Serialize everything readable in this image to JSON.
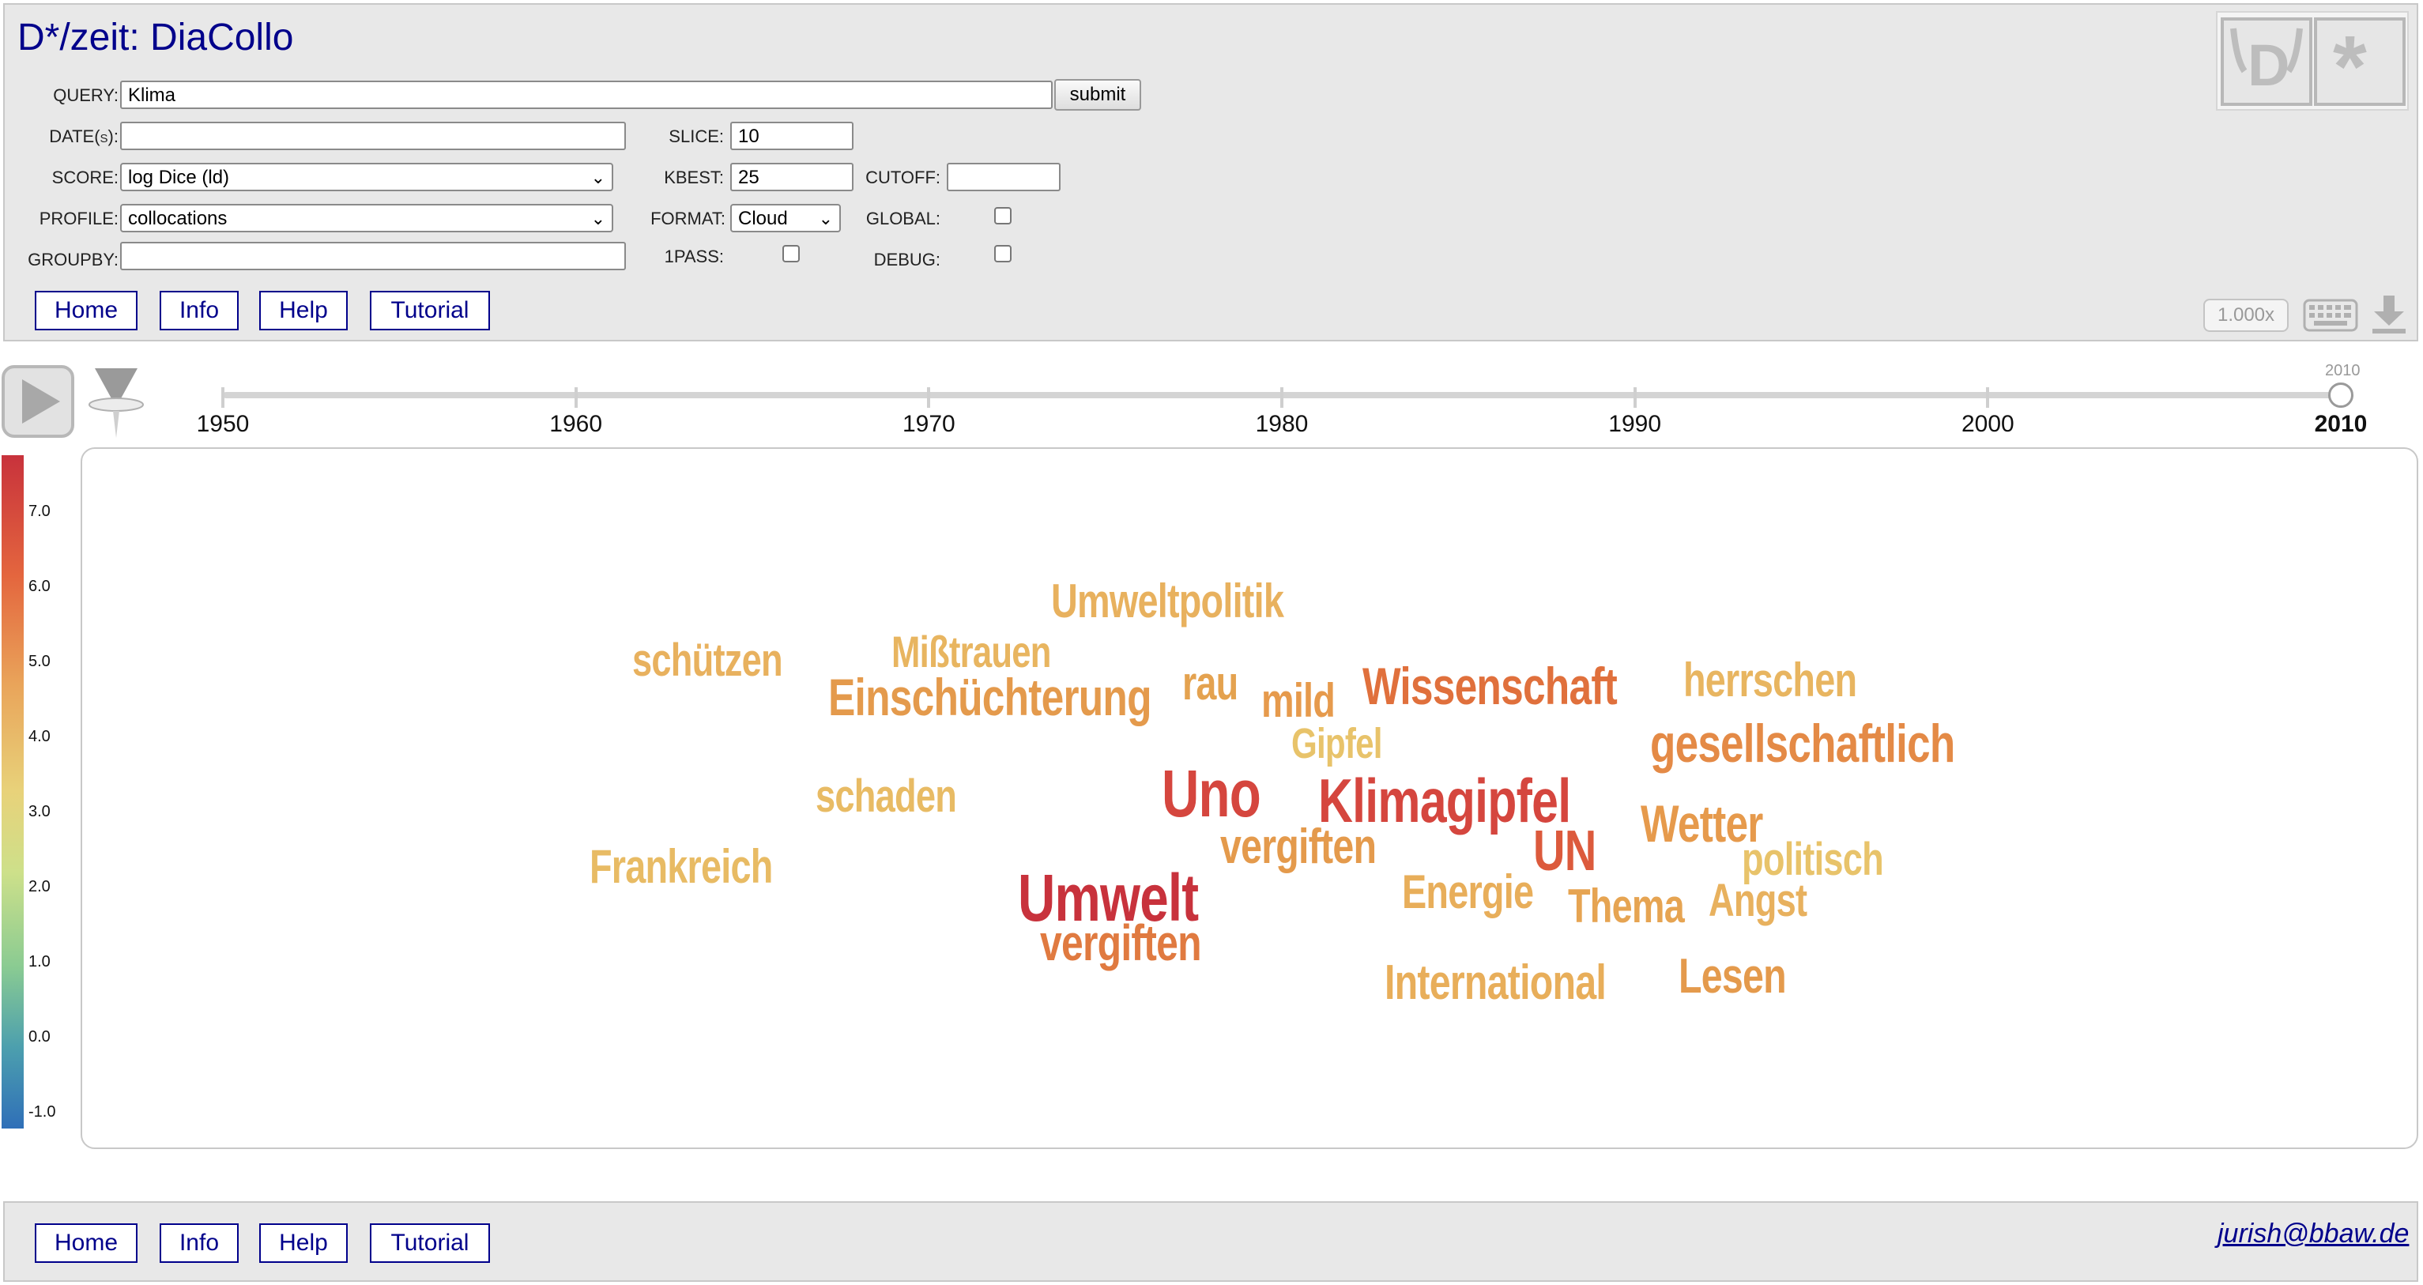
{
  "app": {
    "title": "D*/zeit: DiaCollo"
  },
  "form": {
    "query_label": "QUERY:",
    "query_value": "Klima",
    "submit_label": "submit",
    "dates_label": "DATE(s):",
    "dates_value": "",
    "slice_label": "SLICE:",
    "slice_value": "10",
    "score_label": "SCORE:",
    "score_value": "log Dice (ld)",
    "kbest_label": "KBEST:",
    "kbest_value": "25",
    "cutoff_label": "CUTOFF:",
    "cutoff_value": "",
    "profile_label": "PROFILE:",
    "profile_value": "collocations",
    "format_label": "FORMAT:",
    "format_value": "Cloud",
    "global_label": "GLOBAL:",
    "groupby_label": "GROUPBY:",
    "groupby_value": "",
    "onepass_label": "1PASS:",
    "debug_label": "DEBUG:"
  },
  "nav": {
    "home": "Home",
    "info": "Info",
    "help": "Help",
    "tutorial": "Tutorial"
  },
  "zoom": "1.000x",
  "timeline": {
    "ticks": [
      "1950",
      "1960",
      "1970",
      "1980",
      "1990",
      "2000",
      "2010"
    ],
    "current": "2010"
  },
  "legend": [
    "7.0",
    "6.0",
    "5.0",
    "4.0",
    "3.0",
    "2.0",
    "1.0",
    "0.0",
    "-1.0"
  ],
  "cloud": {
    "words": [
      {
        "text": "Umweltpolitik",
        "color": "#e8b15e"
      },
      {
        "text": "schützen",
        "color": "#e8b15e"
      },
      {
        "text": "Mißtrauen",
        "color": "#e8b560"
      },
      {
        "text": "Einschüchterung",
        "color": "#e49a4c"
      },
      {
        "text": "rau",
        "color": "#e4a24f"
      },
      {
        "text": "mild",
        "color": "#e69a4c"
      },
      {
        "text": "Wissenschaft",
        "color": "#e0703c"
      },
      {
        "text": "herrschen",
        "color": "#e8b560"
      },
      {
        "text": "Gipfel",
        "color": "#e8c36a"
      },
      {
        "text": "gesellschaftlich",
        "color": "#e48a46"
      },
      {
        "text": "schaden",
        "color": "#e8bb64"
      },
      {
        "text": "Uno",
        "color": "#d5463e"
      },
      {
        "text": "Klimagipfel",
        "color": "#d5463e"
      },
      {
        "text": "Wetter",
        "color": "#e69a4c"
      },
      {
        "text": "vergiften",
        "color": "#e49a4c"
      },
      {
        "text": "UN",
        "color": "#dc5a3c"
      },
      {
        "text": "politisch",
        "color": "#e8c36a"
      },
      {
        "text": "Frankreich",
        "color": "#e8bb64"
      },
      {
        "text": "Umwelt",
        "color": "#c8323c"
      },
      {
        "text": "Energie",
        "color": "#e8ae5a"
      },
      {
        "text": "Thema",
        "color": "#e6a452"
      },
      {
        "text": "Angst",
        "color": "#e8b15e"
      },
      {
        "text": "vergiften",
        "color": "#e07a40"
      },
      {
        "text": "International",
        "color": "#e8ae5a"
      },
      {
        "text": "Lesen",
        "color": "#e49a4c"
      }
    ]
  },
  "footer": {
    "email": "jurish@bbaw.de"
  }
}
